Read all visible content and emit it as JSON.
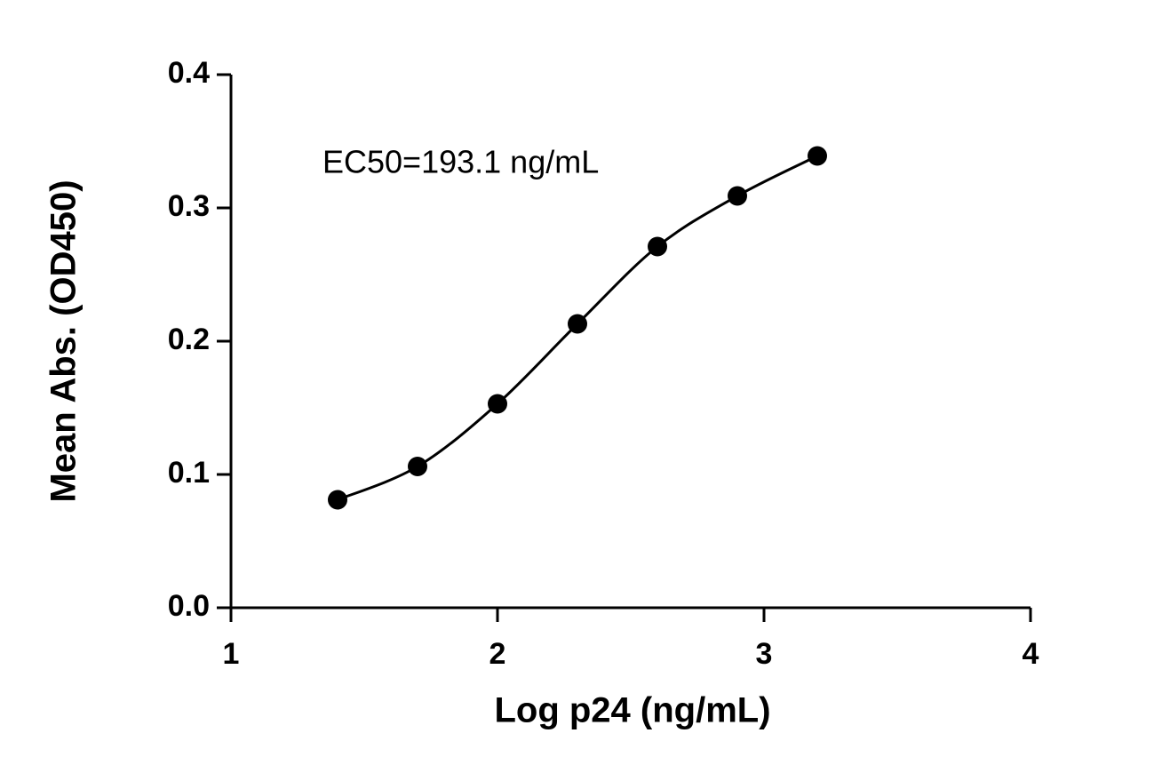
{
  "chart_data": {
    "type": "scatter",
    "annotation": "EC50=193.1 ng/mL",
    "x_label": "Log p24 (ng/mL)",
    "y_label": "Mean  Abs. (OD450)",
    "x": [
      1.4,
      1.7,
      2.0,
      2.3,
      2.6,
      2.9,
      3.2
    ],
    "values": [
      0.081,
      0.106,
      0.153,
      0.213,
      0.271,
      0.309,
      0.339
    ],
    "color": "#000000",
    "fit_curve": true,
    "xlim": [
      1,
      4
    ],
    "xticks": [
      1,
      2,
      3,
      4
    ],
    "ylim": [
      0,
      0.4
    ],
    "yticks": [
      {
        "value": 0,
        "label": "0.0"
      },
      0.1,
      0.2,
      0.3,
      0.4
    ]
  }
}
